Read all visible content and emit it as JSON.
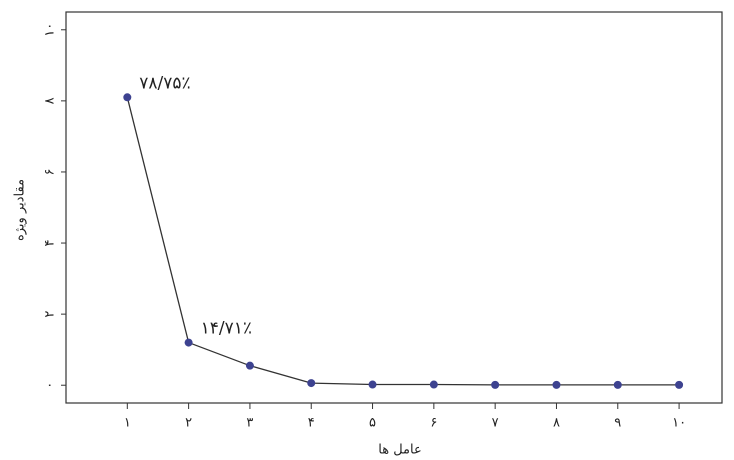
{
  "chart_data": {
    "type": "line",
    "x_label": "عامل ها",
    "y_label": "مقادیر ویژه",
    "x": [
      1,
      2,
      3,
      4,
      5,
      6,
      7,
      8,
      9,
      10
    ],
    "series": [
      {
        "color": "#3d4290",
        "values": [
          8.1,
          1.2,
          0.55,
          0.06,
          0.02,
          0.02,
          0.01,
          0.01,
          0.01,
          0.01
        ]
      }
    ],
    "annotations": [
      "۷۸/۷۵٪",
      "۱۴/۷۱٪"
    ],
    "xlim": [
      0,
      10.7
    ],
    "ylim": [
      -0.5,
      10.5
    ],
    "xticks": [
      {
        "value": 1,
        "label": "۱"
      },
      {
        "value": 2,
        "label": "۲"
      },
      {
        "value": 3,
        "label": "۳"
      },
      {
        "value": 4,
        "label": "۴"
      },
      {
        "value": 5,
        "label": "۵"
      },
      {
        "value": 6,
        "label": "۶"
      },
      {
        "value": 7,
        "label": "۷"
      },
      {
        "value": 8,
        "label": "۸"
      },
      {
        "value": 9,
        "label": "۹"
      },
      {
        "value": 10,
        "label": "۱۰"
      }
    ],
    "yticks": [
      {
        "value": 0,
        "label": "۰"
      },
      {
        "value": 2,
        "label": "۲"
      },
      {
        "value": 4,
        "label": "۴"
      },
      {
        "value": 6,
        "label": "۶"
      },
      {
        "value": 8,
        "label": "۸"
      },
      {
        "value": 10,
        "label": "۱۰"
      }
    ]
  }
}
